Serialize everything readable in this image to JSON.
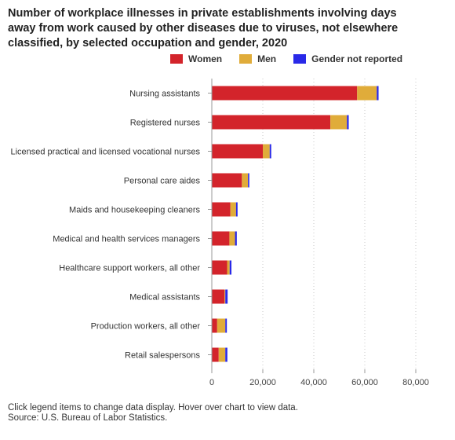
{
  "chart_data": {
    "type": "bar",
    "orientation": "horizontal",
    "stacked": true,
    "title": "Number of workplace illnesses in private establishments involving days away from work caused by other diseases due to viruses, not elsewhere classified, by selected occupation and gender, 2020",
    "categories": [
      "Nursing assistants",
      "Registered nurses",
      "Licensed practical and licensed vocational nurses",
      "Personal care aides",
      "Maids and housekeeping cleaners",
      "Medical and health services managers",
      "Healthcare support workers, all other",
      "Medical assistants",
      "Production workers, all other",
      "Retail salespersons"
    ],
    "series": [
      {
        "name": "Women",
        "color": "#d3242b",
        "values": [
          57000,
          46500,
          20000,
          11800,
          7300,
          6900,
          6000,
          5000,
          2100,
          2700
        ]
      },
      {
        "name": "Men",
        "color": "#e0ac3a",
        "values": [
          7700,
          6500,
          2700,
          2400,
          2200,
          2200,
          1000,
          300,
          3200,
          2600
        ]
      },
      {
        "name": "Gender not reported",
        "color": "#2929e8",
        "values": [
          700,
          700,
          600,
          500,
          600,
          700,
          700,
          900,
          600,
          800
        ]
      }
    ],
    "xlim": [
      0,
      80000
    ],
    "xticks": [
      "0",
      "20,000",
      "40,000",
      "60,000",
      "80,000"
    ],
    "grid": "vertical-dotted",
    "legend_position": "top-right"
  },
  "footnote": {
    "line1": "Click legend items to change data display. Hover over chart to view data.",
    "line2": "Source: U.S. Bureau of Labor Statistics."
  }
}
